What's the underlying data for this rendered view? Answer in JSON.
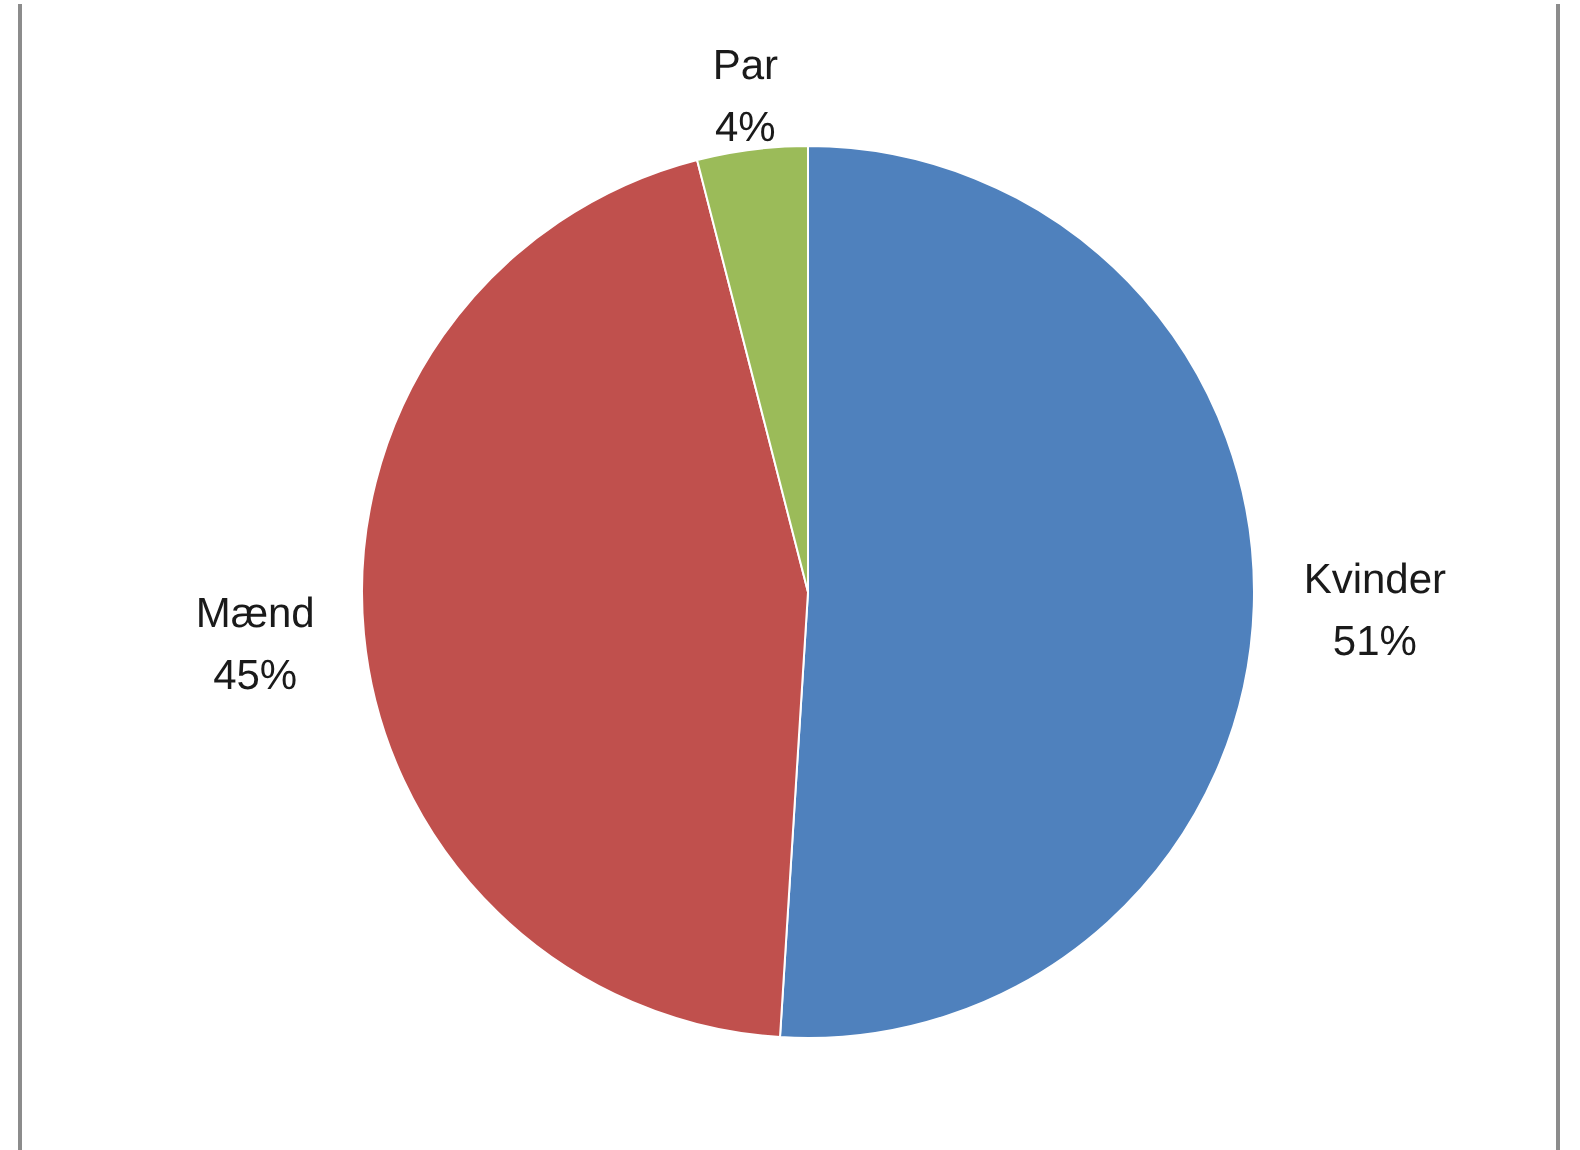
{
  "chart_data": {
    "type": "pie",
    "categories": [
      "Kvinder",
      "Mænd",
      "Par"
    ],
    "values": [
      51,
      45,
      4
    ],
    "colors": [
      "#4f81bd",
      "#c0504d",
      "#9bbb59"
    ],
    "value_labels": [
      "51%",
      "45%",
      "4%"
    ]
  }
}
